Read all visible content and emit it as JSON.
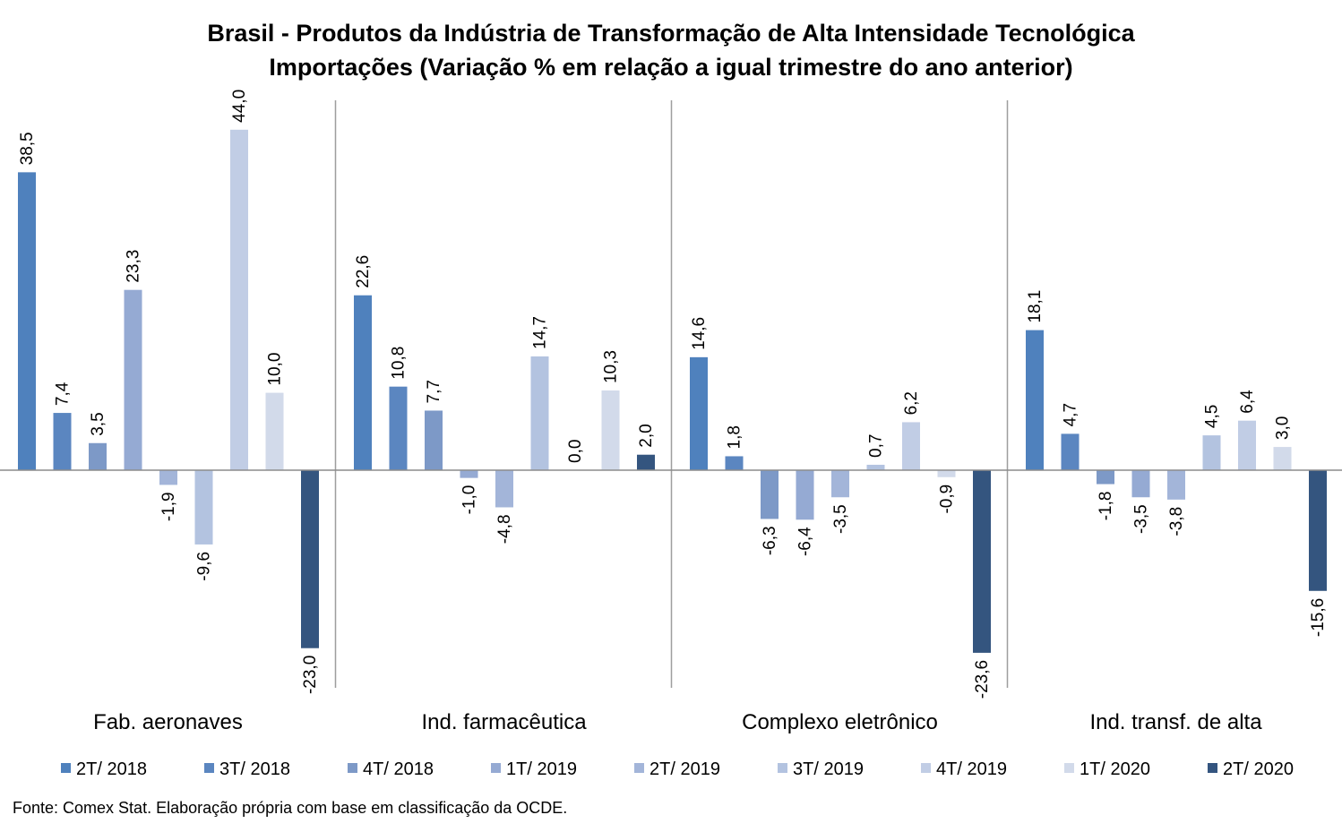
{
  "chart_data": {
    "type": "bar",
    "title": "Brasil - Produtos da Indústria de Transformação de Alta Intensidade Tecnológica",
    "subtitle": "Importações (Variação % em relação a igual trimestre do ano anterior)",
    "categories": [
      "Fab. aeronaves",
      "Ind. farmacêutica",
      "Complexo eletrônico",
      "Ind. transf. de alta"
    ],
    "series": [
      {
        "name": "2T/ 2018",
        "color": "#4f81bd",
        "values": [
          38.5,
          22.6,
          14.6,
          18.1
        ],
        "labels": [
          "38,5",
          "22,6",
          "14,6",
          "18,1"
        ]
      },
      {
        "name": "3T/ 2018",
        "color": "#5b86c0",
        "values": [
          7.4,
          10.8,
          1.8,
          4.7
        ],
        "labels": [
          "7,4",
          "10,8",
          "1,8",
          "4,7"
        ]
      },
      {
        "name": "4T/ 2018",
        "color": "#7d99c7",
        "values": [
          3.5,
          7.7,
          -6.3,
          -1.8
        ],
        "labels": [
          "3,5",
          "7,7",
          "-6,3",
          "-1,8"
        ]
      },
      {
        "name": "1T/ 2019",
        "color": "#95aad3",
        "values": [
          23.3,
          -1.0,
          -6.4,
          -3.5
        ],
        "labels": [
          "23,3",
          "-1,0",
          "-6,4",
          "-3,5"
        ]
      },
      {
        "name": "2T/ 2019",
        "color": "#a3b5d9",
        "values": [
          -1.9,
          -4.8,
          -3.5,
          -3.8
        ],
        "labels": [
          "-1,9",
          "-4,8",
          "-3,5",
          "-3,8"
        ]
      },
      {
        "name": "3T/ 2019",
        "color": "#b3c3e0",
        "values": [
          -9.6,
          14.7,
          0.7,
          4.5
        ],
        "labels": [
          "-9,6",
          "14,7",
          "0,7",
          "4,5"
        ]
      },
      {
        "name": "4T/ 2019",
        "color": "#c1cde5",
        "values": [
          44.0,
          0.0,
          6.2,
          6.4
        ],
        "labels": [
          "44,0",
          "0,0",
          "6,2",
          "6,4"
        ]
      },
      {
        "name": "1T/ 2020",
        "color": "#d2daea",
        "values": [
          10.0,
          10.3,
          -0.9,
          3.0
        ],
        "labels": [
          "10,0",
          "10,3",
          "-0,9",
          "3,0"
        ]
      },
      {
        "name": "2T/ 2020",
        "color": "#34557f",
        "values": [
          -23.0,
          2.0,
          -23.6,
          -15.6
        ],
        "labels": [
          "-23,0",
          "2,0",
          "-23,6",
          "-15,6"
        ]
      }
    ],
    "legend_position": "bottom",
    "grid": false
  },
  "source": "Fonte: Comex Stat. Elaboração própria com base em classificação da OCDE."
}
